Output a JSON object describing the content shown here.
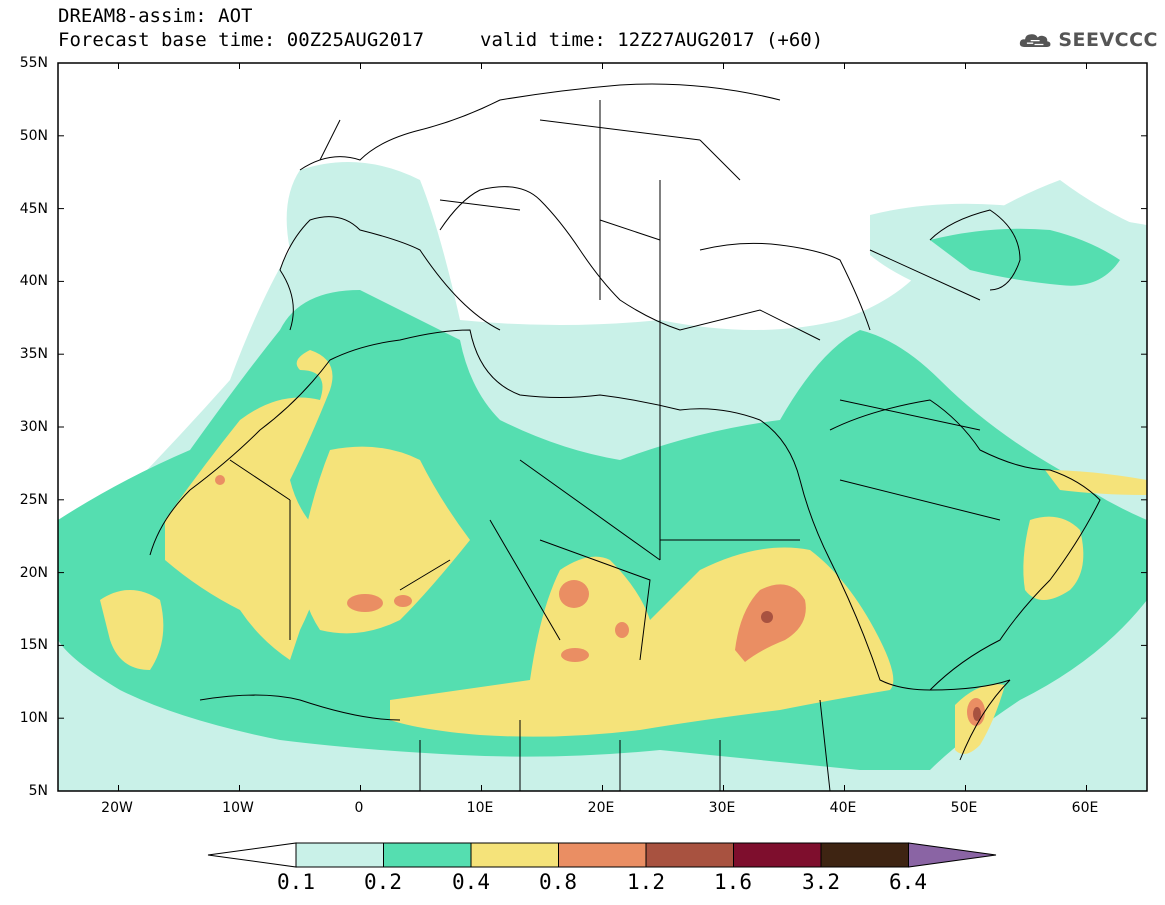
{
  "header": {
    "title_line1": "DREAM8-assim: AOT",
    "title_line2": "Forecast base time: 00Z25AUG2017",
    "valid_time": "valid time: 12Z27AUG2017 (+60)"
  },
  "logo": {
    "text": "SEEVCCC",
    "icon": "cloud-icon"
  },
  "map": {
    "lat_labels": [
      "55N",
      "50N",
      "45N",
      "40N",
      "35N",
      "30N",
      "25N",
      "20N",
      "15N",
      "10N",
      "5N"
    ],
    "lon_labels": [
      "20W",
      "10W",
      "0",
      "10E",
      "20E",
      "30E",
      "40E",
      "50E",
      "60E"
    ],
    "lat_range": [
      5,
      55
    ],
    "lon_range": [
      -25,
      65
    ]
  },
  "colorbar": {
    "labels": [
      "0.1",
      "0.2",
      "0.4",
      "0.8",
      "1.2",
      "1.6",
      "3.2",
      "6.4"
    ],
    "colors": [
      "#ffffff",
      "#c9f1e8",
      "#55deb0",
      "#f5e37a",
      "#ea8e63",
      "#a85240",
      "#7e0e2d",
      "#3e2412",
      "#8a64a4"
    ]
  }
}
